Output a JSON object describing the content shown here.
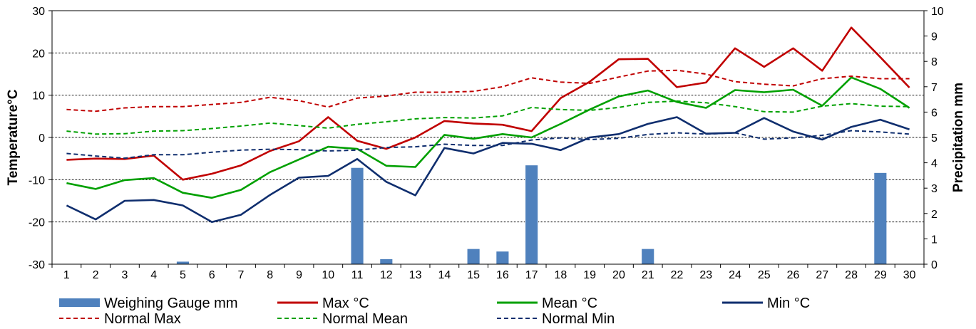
{
  "chart_data": {
    "type": "bar+line",
    "title": "",
    "xlabel": "",
    "ylabel": "Temperature°C",
    "y2label": "Precipitation mm",
    "ylim": [
      -30,
      30
    ],
    "y2lim": [
      0,
      10
    ],
    "yticks": [
      30,
      20,
      10,
      0,
      -10,
      -20,
      -30
    ],
    "y2ticks": [
      10,
      9,
      8,
      7,
      6,
      5,
      4,
      3,
      2,
      1,
      0
    ],
    "grid": true,
    "legend_position": "bottom",
    "categories": [
      "1",
      "2",
      "3",
      "4",
      "5",
      "6",
      "7",
      "8",
      "9",
      "10",
      "11",
      "12",
      "13",
      "14",
      "15",
      "16",
      "17",
      "18",
      "19",
      "20",
      "21",
      "22",
      "23",
      "24",
      "25",
      "26",
      "27",
      "28",
      "29",
      "30"
    ],
    "bars": {
      "name": "Weighing Gauge mm",
      "color": "#4f81bd",
      "axis": "y2",
      "values": [
        0,
        0,
        0,
        0,
        0.1,
        0,
        0,
        0,
        0,
        0,
        3.8,
        0.2,
        0,
        0,
        0.6,
        0.5,
        3.9,
        0,
        0,
        0,
        0.6,
        0,
        0,
        0,
        0,
        0,
        0,
        0,
        3.6,
        0
      ]
    },
    "series": [
      {
        "name": "Max °C",
        "color": "#c00000",
        "dashed": false,
        "values": [
          -5.3,
          -5.0,
          -5.1,
          -4.3,
          -10.0,
          -8.6,
          -6.6,
          -3.2,
          -0.9,
          4.8,
          -0.8,
          -2.7,
          0.0,
          3.9,
          3.3,
          3.0,
          1.5,
          9.3,
          13.2,
          18.5,
          18.6,
          11.9,
          13.0,
          21.1,
          16.7,
          21.1,
          15.8,
          26.0,
          19.0,
          11.8
        ]
      },
      {
        "name": "Mean °C",
        "color": "#00a000",
        "dashed": false,
        "values": [
          -10.8,
          -12.2,
          -10.1,
          -9.6,
          -13.1,
          -14.3,
          -12.4,
          -8.2,
          -5.2,
          -2.2,
          -2.7,
          -6.7,
          -7.0,
          0.6,
          -0.3,
          0.8,
          0.0,
          3.2,
          6.6,
          9.7,
          11.1,
          8.4,
          7.0,
          11.2,
          10.7,
          11.3,
          7.5,
          14.2,
          11.5,
          7.0
        ]
      },
      {
        "name": "Min °C",
        "color": "#0f2e6e",
        "dashed": false,
        "values": [
          -16.1,
          -19.4,
          -15.0,
          -14.8,
          -16.1,
          -20.0,
          -18.3,
          -13.6,
          -9.5,
          -9.1,
          -5.1,
          -10.5,
          -13.7,
          -2.5,
          -3.8,
          -1.3,
          -1.5,
          -3.0,
          0.0,
          0.8,
          3.2,
          4.8,
          0.9,
          1.1,
          4.6,
          1.4,
          -0.5,
          2.5,
          4.2,
          1.9
        ]
      },
      {
        "name": "Normal Max",
        "color": "#c00000",
        "dashed": true,
        "values": [
          6.6,
          6.2,
          7.0,
          7.3,
          7.3,
          7.8,
          8.3,
          9.5,
          8.7,
          7.2,
          9.3,
          9.8,
          10.7,
          10.7,
          10.9,
          12.0,
          14.1,
          13.1,
          12.8,
          14.3,
          15.7,
          15.9,
          15.0,
          13.2,
          12.6,
          12.2,
          13.9,
          14.5,
          13.9,
          13.9
        ]
      },
      {
        "name": "Normal Mean",
        "color": "#00a000",
        "dashed": true,
        "values": [
          1.5,
          0.8,
          0.9,
          1.5,
          1.6,
          2.1,
          2.7,
          3.4,
          2.8,
          2.2,
          3.1,
          3.7,
          4.4,
          4.7,
          4.6,
          5.1,
          7.1,
          6.6,
          6.4,
          7.1,
          8.3,
          8.6,
          8.2,
          7.3,
          6.1,
          6.0,
          7.4,
          8.0,
          7.4,
          7.3
        ]
      },
      {
        "name": "Normal Min",
        "color": "#0f2e6e",
        "dashed": true,
        "values": [
          -3.8,
          -4.4,
          -4.9,
          -4.1,
          -4.1,
          -3.5,
          -3.0,
          -2.8,
          -2.9,
          -3.2,
          -3.0,
          -2.4,
          -2.2,
          -1.6,
          -1.9,
          -1.9,
          -0.6,
          -0.1,
          -0.5,
          -0.2,
          0.7,
          1.1,
          0.8,
          1.1,
          -0.4,
          -0.1,
          0.5,
          1.6,
          1.3,
          0.8
        ]
      }
    ]
  }
}
